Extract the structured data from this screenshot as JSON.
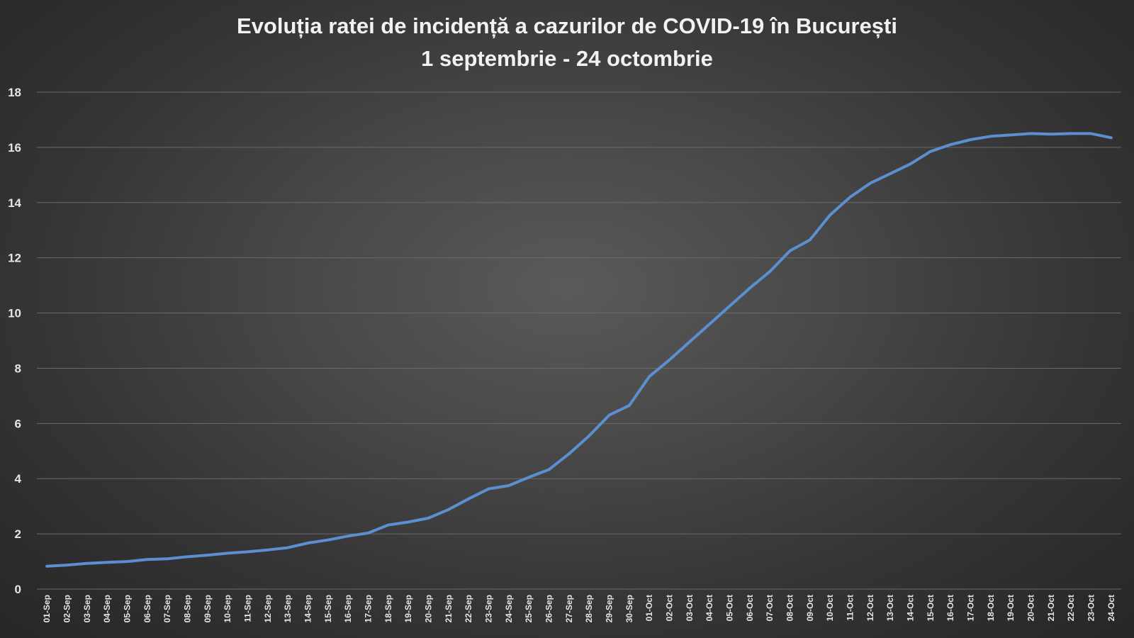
{
  "chart_data": {
    "type": "line",
    "title": "Evoluția ratei de incidență a cazurilor de COVID-19 în București",
    "subtitle": "1 septembrie - 24 octombrie",
    "xlabel": "",
    "ylabel": "",
    "ylim": [
      0,
      18
    ],
    "yticks": [
      0,
      2,
      4,
      6,
      8,
      10,
      12,
      14,
      16,
      18
    ],
    "grid": true,
    "legend": "none",
    "line_color": "#5b8fd0",
    "categories": [
      "01-Sep",
      "02-Sep",
      "03-Sep",
      "04-Sep",
      "05-Sep",
      "06-Sep",
      "07-Sep",
      "08-Sep",
      "09-Sep",
      "10-Sep",
      "11-Sep",
      "12-Sep",
      "13-Sep",
      "14-Sep",
      "15-Sep",
      "16-Sep",
      "17-Sep",
      "18-Sep",
      "19-Sep",
      "20-Sep",
      "21-Sep",
      "22-Sep",
      "23-Sep",
      "24-Sep",
      "25-Sep",
      "26-Sep",
      "27-Sep",
      "28-Sep",
      "29-Sep",
      "30-Sep",
      "01-Oct",
      "02-Oct",
      "03-Oct",
      "04-Oct",
      "05-Oct",
      "06-Oct",
      "07-Oct",
      "08-Oct",
      "09-Oct",
      "10-Oct",
      "11-Oct",
      "12-Oct",
      "13-Oct",
      "14-Oct",
      "15-Oct",
      "16-Oct",
      "17-Oct",
      "18-Oct",
      "19-Oct",
      "20-Oct",
      "21-Oct",
      "22-Oct",
      "23-Oct",
      "24-Oct"
    ],
    "series": [
      {
        "values": [
          0.83,
          0.87,
          0.93,
          0.97,
          1.0,
          1.07,
          1.1,
          1.17,
          1.23,
          1.3,
          1.35,
          1.42,
          1.5,
          1.67,
          1.78,
          1.92,
          2.03,
          2.32,
          2.43,
          2.57,
          2.88,
          3.27,
          3.63,
          3.75,
          4.05,
          4.33,
          4.9,
          5.55,
          6.3,
          6.65,
          7.7,
          8.3,
          8.95,
          9.6,
          10.25,
          10.9,
          11.5,
          12.25,
          12.65,
          13.55,
          14.2,
          14.7,
          15.05,
          15.4,
          15.85,
          16.1,
          16.28,
          16.4,
          16.45,
          16.5,
          16.48,
          16.5,
          16.5,
          16.35
        ]
      }
    ]
  }
}
